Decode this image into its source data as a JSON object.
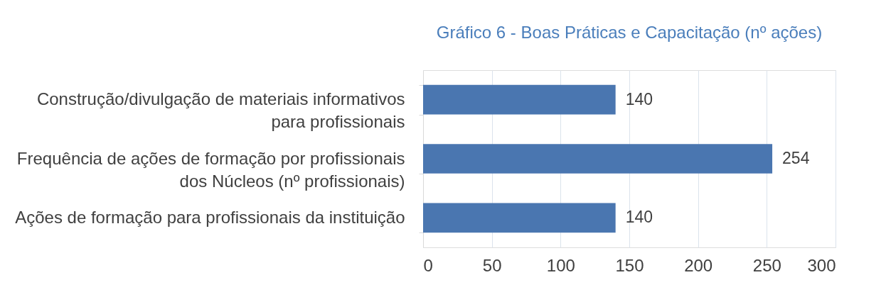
{
  "chart_data": {
    "type": "bar",
    "orientation": "horizontal",
    "title": "Gráfico 6 - Boas Práticas e Capacitação (nº ações)",
    "categories": [
      "Construção/divulgação de materiais informativos para profissionais",
      "Frequência de ações de formação por profissionais dos Núcleos (nº profissionais)",
      "Ações de formação para profissionais da instituição"
    ],
    "values": [
      140,
      254,
      140
    ],
    "color": "#4a76b0",
    "xlim": [
      0,
      300
    ],
    "xticks": [
      0,
      50,
      100,
      150,
      200,
      250,
      300
    ],
    "grid": "x",
    "data_labels": true
  }
}
